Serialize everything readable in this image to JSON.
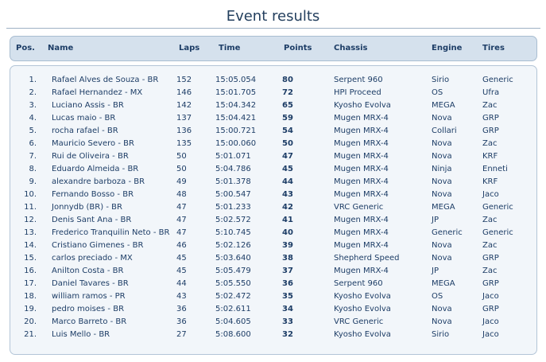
{
  "title": "Event results",
  "table": {
    "headers": [
      "Pos.",
      "Name",
      "Laps",
      "Time",
      "Points",
      "Chassis",
      "Engine",
      "Tires"
    ],
    "rows": [
      [
        "1.",
        "Rafael Alves de Souza - BR",
        152,
        "15:05.054",
        80,
        "Serpent 960",
        "Sirio",
        "Generic"
      ],
      [
        "2.",
        "Rafael Hernandez - MX",
        146,
        "15:01.705",
        72,
        "HPI Proceed",
        "OS",
        "Ufra"
      ],
      [
        "3.",
        "Luciano Assis - BR",
        142,
        "15:04.342",
        65,
        "Kyosho Evolva",
        "MEGA",
        "Zac"
      ],
      [
        "4.",
        "Lucas maio - BR",
        137,
        "15:04.421",
        59,
        "Mugen MRX-4",
        "Nova",
        "GRP"
      ],
      [
        "5.",
        "rocha rafael - BR",
        136,
        "15:00.721",
        54,
        "Mugen MRX-4",
        "Collari",
        "GRP"
      ],
      [
        "6.",
        "Mauricio Severo - BR",
        135,
        "15:00.060",
        50,
        "Mugen MRX-4",
        "Nova",
        "Zac"
      ],
      [
        "7.",
        "Rui de Oliveira - BR",
        50,
        "5:01.071",
        47,
        "Mugen MRX-4",
        "Nova",
        "KRF"
      ],
      [
        "8.",
        "Eduardo Almeida - BR",
        50,
        "5:04.786",
        45,
        "Mugen MRX-4",
        "Ninja",
        "Enneti"
      ],
      [
        "9.",
        "alexandre barboza - BR",
        49,
        "5:01.378",
        44,
        "Mugen MRX-4",
        "Nova",
        "KRF"
      ],
      [
        "10.",
        "Fernando Bosso - BR",
        48,
        "5:00.547",
        43,
        "Mugen MRX-4",
        "Nova",
        "Jaco"
      ],
      [
        "11.",
        "Jonnydb (BR) - BR",
        47,
        "5:01.233",
        42,
        "VRC Generic",
        "MEGA",
        "Generic"
      ],
      [
        "12.",
        "Denis Sant Ana - BR",
        47,
        "5:02.572",
        41,
        "Mugen MRX-4",
        "JP",
        "Zac"
      ],
      [
        "13.",
        "Frederico Tranquilin Neto - BR",
        47,
        "5:10.745",
        40,
        "Mugen MRX-4",
        "Generic",
        "Generic"
      ],
      [
        "14.",
        "Cristiano Gimenes - BR",
        46,
        "5:02.126",
        39,
        "Mugen MRX-4",
        "Nova",
        "Zac"
      ],
      [
        "15.",
        "carlos preciado - MX",
        45,
        "5:03.640",
        38,
        "Shepherd Speed",
        "Nova",
        "GRP"
      ],
      [
        "16.",
        "Anilton Costa - BR",
        45,
        "5:05.479",
        37,
        "Mugen MRX-4",
        "JP",
        "Zac"
      ],
      [
        "17.",
        "Daniel Tavares - BR",
        44,
        "5:05.550",
        36,
        "Serpent 960",
        "MEGA",
        "GRP"
      ],
      [
        "18.",
        "william ramos - PR",
        43,
        "5:02.472",
        35,
        "Kyosho Evolva",
        "OS",
        "Jaco"
      ],
      [
        "19.",
        "pedro moises - BR",
        36,
        "5:02.611",
        34,
        "Kyosho Evolva",
        "Nova",
        "GRP"
      ],
      [
        "20.",
        "Marco Barreto - BR",
        36,
        "5:04.605",
        33,
        "VRC Generic",
        "Nova",
        "Jaco"
      ],
      [
        "21.",
        "Luis Mello - BR",
        27,
        "5:08.600",
        32,
        "Kyosho Evolva",
        "Sirio",
        "Jaco"
      ]
    ]
  }
}
